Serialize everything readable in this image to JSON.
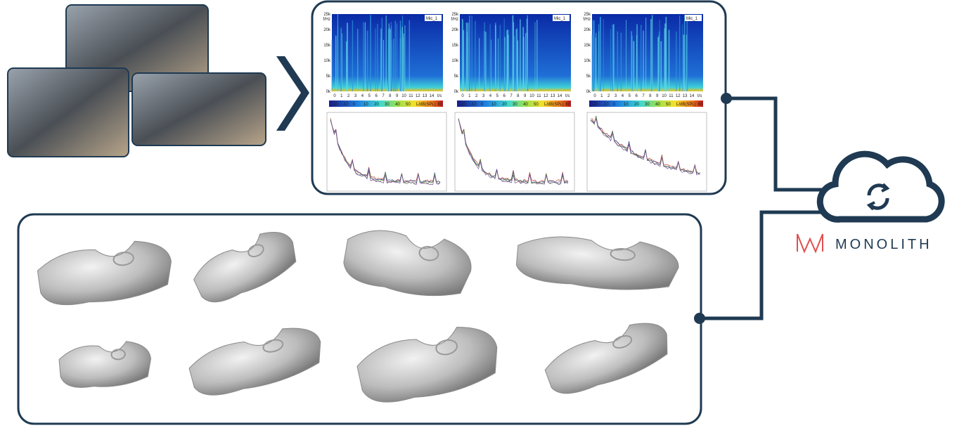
{
  "brand": "MONOLITH",
  "spectrograms": [
    {
      "label": "Mic_1"
    },
    {
      "label": "Mic_1"
    },
    {
      "label": "Mic_1"
    }
  ],
  "spectrogram_axis": {
    "y_unit": "f/Hz",
    "y_ticks": [
      "25k",
      "20k",
      "15k",
      "10k",
      "5k",
      "0k"
    ],
    "x_unit": "t/s",
    "x_ticks": [
      0,
      1,
      2,
      3,
      4,
      5,
      6,
      7,
      8,
      9,
      10,
      11,
      12,
      13,
      14
    ]
  },
  "colorbar": {
    "ticks": [
      -20,
      -10,
      0,
      10,
      20,
      30,
      40,
      50
    ],
    "unit": "L/dB(SPL)",
    "max": 80
  }
}
